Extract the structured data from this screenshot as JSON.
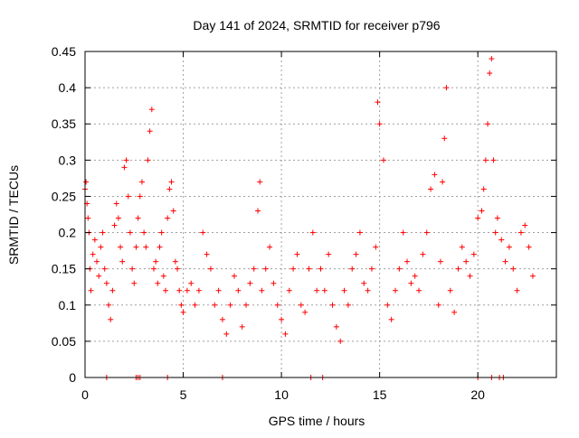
{
  "chart_data": {
    "type": "scatter",
    "title": "Day 141 of 2024, SRMTID for receiver p796",
    "xlabel": "GPS time / hours",
    "ylabel": "SRMTID / TECUs",
    "xlim": [
      0,
      24
    ],
    "ylim": [
      0,
      0.45
    ],
    "xticks": [
      0,
      5,
      10,
      15,
      20
    ],
    "xtick_labels": [
      "0",
      "5",
      "10",
      "15",
      "20"
    ],
    "yticks": [
      0,
      0.05,
      0.1,
      0.15,
      0.2,
      0.25,
      0.3,
      0.35,
      0.4,
      0.45
    ],
    "ytick_labels": [
      "0",
      "0.05",
      "0.1",
      "0.15",
      "0.2",
      "0.25",
      "0.3",
      "0.35",
      "0.4",
      "0.45"
    ],
    "grid": true,
    "marker": "+",
    "series": [
      {
        "name": "SRMTID",
        "color": "#ff0000",
        "x": [
          0.0,
          0.05,
          0.1,
          0.15,
          0.2,
          0.25,
          0.3,
          0.4,
          0.5,
          0.6,
          0.7,
          0.8,
          0.9,
          1.0,
          1.1,
          1.2,
          1.3,
          1.4,
          1.5,
          1.6,
          1.7,
          1.8,
          1.9,
          2.0,
          2.1,
          2.2,
          2.3,
          2.4,
          2.5,
          2.6,
          2.7,
          2.8,
          2.9,
          3.0,
          3.1,
          3.2,
          3.3,
          3.4,
          3.5,
          3.6,
          3.7,
          3.8,
          3.9,
          4.0,
          4.1,
          4.2,
          4.3,
          4.4,
          4.5,
          4.6,
          4.7,
          4.8,
          4.9,
          5.0,
          5.2,
          5.4,
          5.6,
          5.8,
          6.0,
          6.2,
          6.4,
          6.6,
          6.8,
          7.0,
          7.2,
          7.4,
          7.6,
          7.8,
          8.0,
          8.2,
          8.4,
          8.6,
          8.8,
          8.9,
          9.0,
          9.2,
          9.4,
          9.6,
          9.8,
          10.0,
          10.2,
          10.4,
          10.6,
          10.8,
          11.0,
          11.2,
          11.4,
          11.6,
          11.8,
          12.0,
          12.2,
          12.4,
          12.6,
          12.8,
          13.0,
          13.2,
          13.4,
          13.6,
          13.8,
          14.0,
          14.2,
          14.4,
          14.6,
          14.8,
          14.9,
          15.0,
          15.2,
          15.4,
          15.6,
          15.8,
          16.0,
          16.2,
          16.4,
          16.6,
          16.8,
          17.0,
          17.2,
          17.4,
          17.6,
          17.8,
          18.0,
          18.1,
          18.2,
          18.3,
          18.4,
          18.6,
          18.8,
          19.0,
          19.2,
          19.4,
          19.6,
          19.8,
          20.0,
          20.2,
          20.3,
          20.4,
          20.5,
          20.6,
          20.7,
          20.8,
          20.9,
          21.0,
          21.2,
          21.4,
          21.6,
          21.8,
          22.0,
          22.2,
          22.4,
          22.6,
          22.8,
          1.1,
          2.6,
          2.7,
          2.8,
          4.2,
          7.0,
          11.5,
          12.1,
          20.0,
          20.7,
          21.1,
          21.3
        ],
        "y": [
          0.26,
          0.27,
          0.24,
          0.22,
          0.2,
          0.15,
          0.12,
          0.17,
          0.19,
          0.16,
          0.14,
          0.18,
          0.2,
          0.15,
          0.13,
          0.1,
          0.08,
          0.12,
          0.21,
          0.24,
          0.22,
          0.18,
          0.16,
          0.29,
          0.3,
          0.25,
          0.2,
          0.15,
          0.13,
          0.18,
          0.22,
          0.25,
          0.27,
          0.2,
          0.18,
          0.3,
          0.34,
          0.37,
          0.15,
          0.16,
          0.13,
          0.18,
          0.2,
          0.14,
          0.12,
          0.22,
          0.26,
          0.27,
          0.23,
          0.16,
          0.15,
          0.12,
          0.1,
          0.09,
          0.12,
          0.13,
          0.1,
          0.12,
          0.2,
          0.17,
          0.15,
          0.1,
          0.12,
          0.08,
          0.06,
          0.1,
          0.14,
          0.12,
          0.07,
          0.1,
          0.13,
          0.15,
          0.23,
          0.27,
          0.12,
          0.15,
          0.18,
          0.13,
          0.1,
          0.08,
          0.06,
          0.12,
          0.15,
          0.17,
          0.1,
          0.09,
          0.15,
          0.2,
          0.12,
          0.15,
          0.12,
          0.17,
          0.1,
          0.07,
          0.05,
          0.12,
          0.1,
          0.15,
          0.17,
          0.2,
          0.13,
          0.12,
          0.15,
          0.18,
          0.38,
          0.35,
          0.3,
          0.1,
          0.08,
          0.12,
          0.15,
          0.2,
          0.16,
          0.13,
          0.14,
          0.12,
          0.17,
          0.2,
          0.26,
          0.28,
          0.1,
          0.16,
          0.27,
          0.33,
          0.4,
          0.12,
          0.09,
          0.15,
          0.18,
          0.16,
          0.14,
          0.17,
          0.22,
          0.23,
          0.26,
          0.3,
          0.35,
          0.42,
          0.44,
          0.3,
          0.2,
          0.22,
          0.19,
          0.16,
          0.18,
          0.15,
          0.12,
          0.2,
          0.21,
          0.18,
          0.14,
          0.0,
          0.0,
          0.0,
          0.0,
          0.0,
          0.0,
          0.0,
          0.0,
          0.0,
          0.0,
          0.0,
          0.0
        ]
      }
    ]
  }
}
